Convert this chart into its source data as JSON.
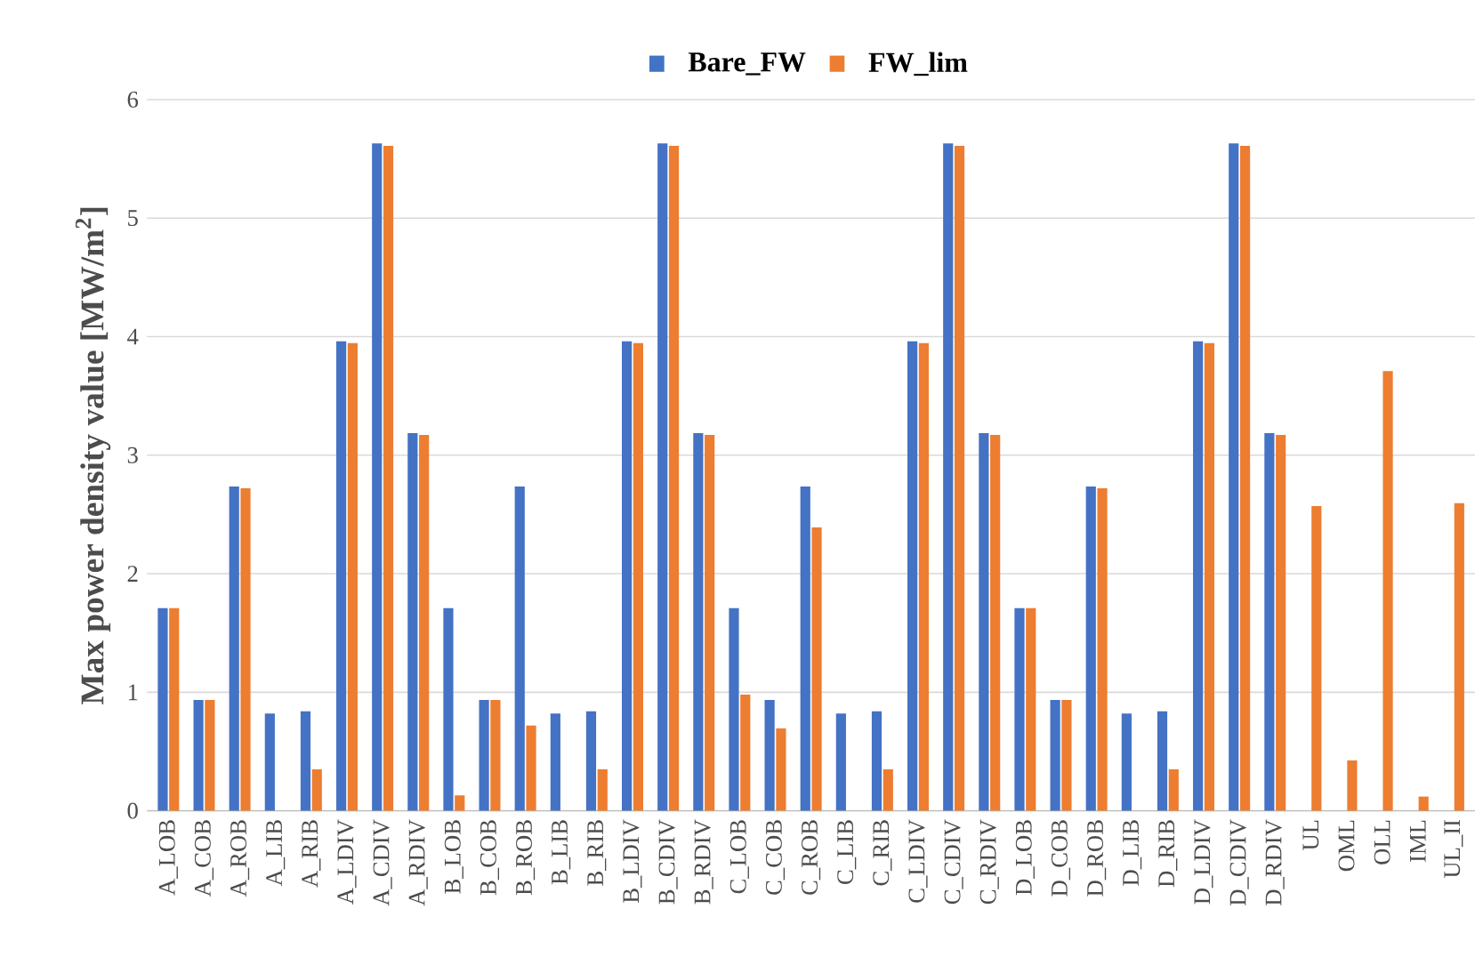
{
  "chart_data": {
    "type": "bar",
    "ylabel": "Max power density value [MW/m$^{2}$]",
    "categories": [
      "A_LOB",
      "A_COB",
      "A_ROB",
      "A_LIB",
      "A_RIB",
      "A_LDIV",
      "A_CDIV",
      "A_RDIV",
      "B_LOB",
      "B_COB",
      "B_ROB",
      "B_LIB",
      "B_RIB",
      "B_LDIV",
      "B_CDIV",
      "B_RDIV",
      "C_LOB",
      "C_COB",
      "C_ROB",
      "C_LIB",
      "C_RIB",
      "C_LDIV",
      "C_CDIV",
      "C_RDIV",
      "D_LOB",
      "D_COB",
      "D_ROB",
      "D_LIB",
      "D_RIB",
      "D_LDIV",
      "D_CDIV",
      "D_RDIV",
      "UL",
      "OML",
      "OLL",
      "IML",
      "UL_II"
    ],
    "series": [
      {
        "name": "Bare_FW",
        "color": "#4472c4",
        "values": [
          1.71,
          0.935,
          2.735,
          0.82,
          0.84,
          3.96,
          5.63,
          3.185,
          1.71,
          0.935,
          2.735,
          0.82,
          0.84,
          3.96,
          5.63,
          3.185,
          1.71,
          0.935,
          2.735,
          0.82,
          0.84,
          3.96,
          5.63,
          3.185,
          1.71,
          0.935,
          2.735,
          0.82,
          0.84,
          3.96,
          5.63,
          3.185,
          null,
          null,
          null,
          null,
          null
        ]
      },
      {
        "name": "FW_lim",
        "color": "#ed7d31",
        "values": [
          1.71,
          0.935,
          2.72,
          null,
          0.35,
          3.945,
          5.61,
          3.17,
          0.13,
          0.935,
          0.72,
          null,
          0.35,
          3.945,
          5.61,
          3.17,
          0.98,
          0.695,
          2.39,
          null,
          0.35,
          3.945,
          5.61,
          3.17,
          1.71,
          0.935,
          2.72,
          null,
          0.35,
          3.945,
          5.61,
          3.17,
          2.57,
          0.425,
          3.71,
          0.12,
          2.595
        ]
      }
    ],
    "ylim": [
      0,
      6
    ],
    "yticks": [
      0,
      1,
      2,
      3,
      4,
      5,
      6
    ],
    "grid": "y",
    "legend": "top"
  }
}
